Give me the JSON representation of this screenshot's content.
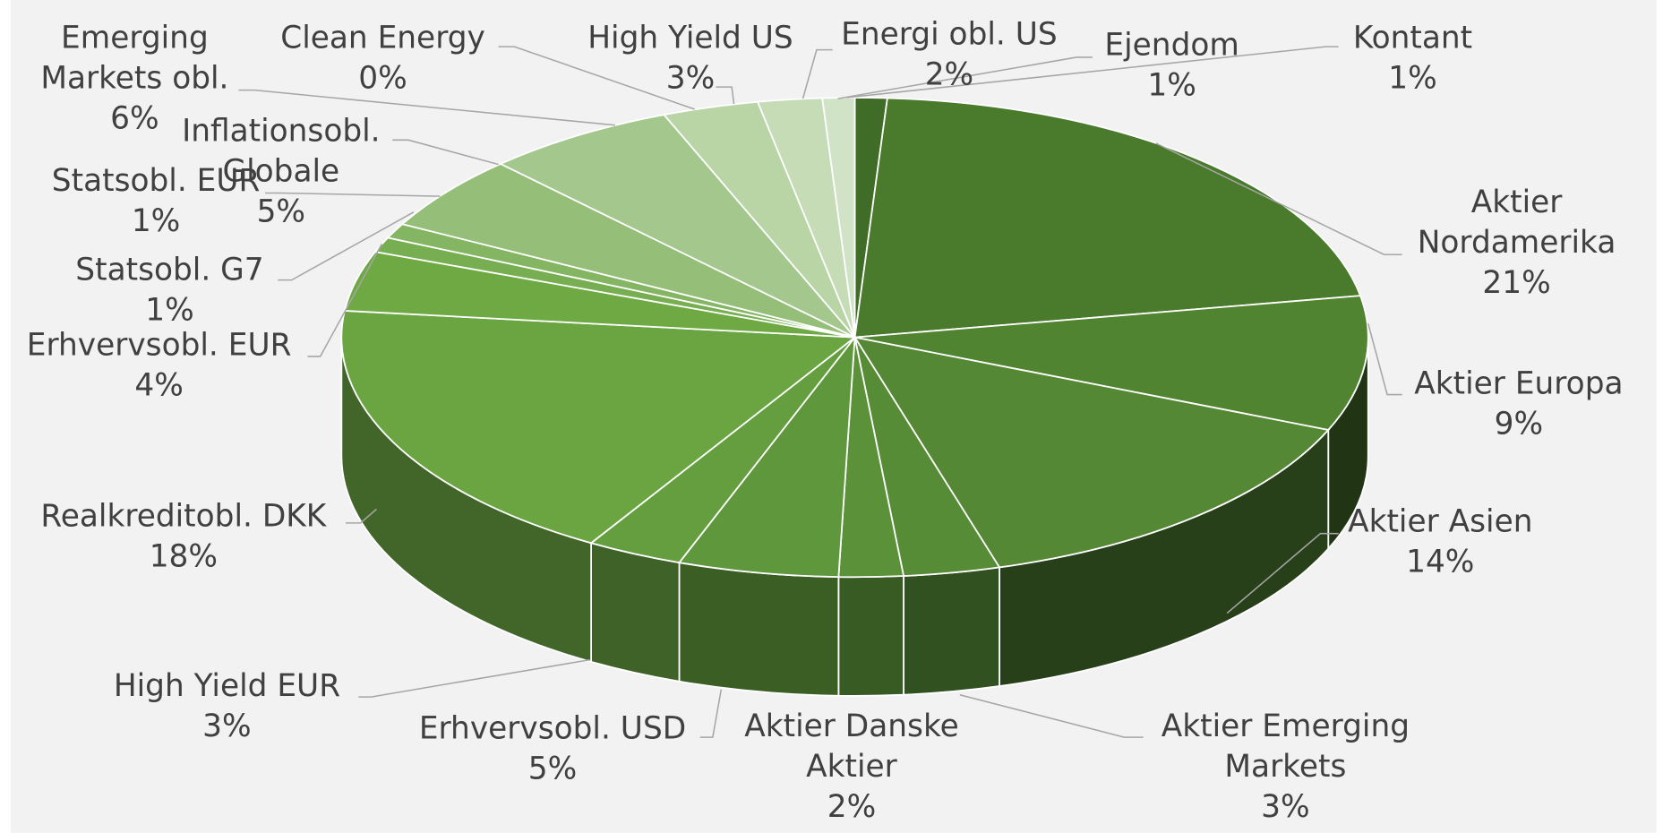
{
  "chart_data": {
    "type": "pie",
    "categories": [
      "Kontant",
      "Aktier Nordamerika",
      "Aktier Europa",
      "Aktier Asien",
      "Aktier Emerging Markets",
      "Aktier Danske Aktier",
      "Erhvervsobl. USD",
      "High Yield EUR",
      "Realkreditobl. DKK",
      "Erhvervsobl. EUR",
      "Statsobl. G7",
      "Statsobl. EUR",
      "Inflationsobl. Globale",
      "Emerging Markets obl.",
      "Clean Energy",
      "High Yield US",
      "Energi obl. US",
      "Ejendom"
    ],
    "values": [
      1,
      21,
      9,
      14,
      3,
      2,
      5,
      3,
      18,
      4,
      1,
      1,
      5,
      6,
      0,
      3,
      2,
      1
    ],
    "value_labels": [
      "1%",
      "21%",
      "9%",
      "14%",
      "3%",
      "2%",
      "5%",
      "3%",
      "18%",
      "4%",
      "1%",
      "1%",
      "5%",
      "6%",
      "0%",
      "3%",
      "2%",
      "1%"
    ],
    "colors": [
      "#3f6c26",
      "#4a7a2c",
      "#518431",
      "#548834",
      "#578c37",
      "#5b9239",
      "#5f973c",
      "#649e3f",
      "#6aa542",
      "#6ea944",
      "#78ae52",
      "#84b562",
      "#95be78",
      "#a3c78c",
      "#b0cf9c",
      "#b9d5a6",
      "#c5dcb7",
      "#d1e3c6"
    ]
  }
}
